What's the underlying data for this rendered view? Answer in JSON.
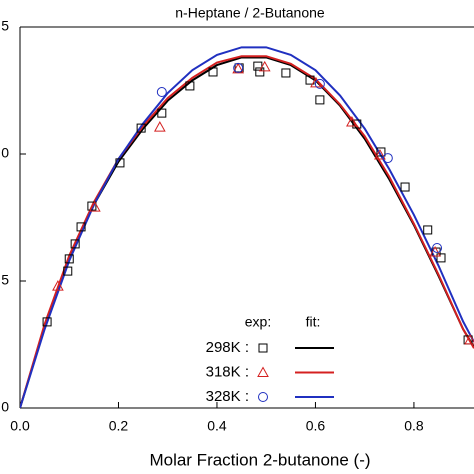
{
  "chart_data": {
    "type": "scatter",
    "title": "n-Heptane / 2-Butanone",
    "x_label": "Molar Fraction 2-butanone (-)",
    "xlim": [
      0,
      0.922
    ],
    "ylim": [
      0,
      15
    ],
    "xticks": [
      {
        "value": 0,
        "label": "0.0"
      },
      0.2,
      0.4,
      0.6,
      0.8
    ],
    "yticks": [
      {
        "value": 0,
        "label": "0"
      },
      5,
      {
        "value": 10,
        "label": "0"
      },
      {
        "value": 15,
        "label": "5"
      }
    ],
    "legend_headers": [
      "exp:",
      "fit:"
    ],
    "series": [
      {
        "name": "298K :",
        "color": "#000000",
        "marker": "square",
        "x": [
          0.055,
          0.097,
          0.1,
          0.112,
          0.124,
          0.146,
          0.203,
          0.246,
          0.288,
          0.345,
          0.392,
          0.445,
          0.483,
          0.487,
          0.54,
          0.589,
          0.609,
          0.684,
          0.733,
          0.782,
          0.828,
          0.845,
          0.855,
          0.91
        ],
        "values": [
          3.39,
          5.39,
          5.87,
          6.46,
          7.13,
          7.95,
          9.65,
          11.02,
          11.61,
          12.68,
          13.23,
          13.39,
          13.46,
          13.23,
          13.19,
          12.91,
          12.13,
          11.18,
          10.08,
          8.7,
          7.01,
          6.14,
          5.91,
          2.68
        ],
        "fit": {
          "x": [
            0,
            0.05,
            0.1,
            0.15,
            0.2,
            0.25,
            0.3,
            0.35,
            0.4,
            0.45,
            0.5,
            0.55,
            0.6,
            0.65,
            0.7,
            0.75,
            0.8,
            0.85,
            0.9,
            0.922
          ],
          "values": [
            0,
            3.2,
            5.9,
            8.0,
            9.7,
            11.0,
            12.1,
            12.9,
            13.5,
            13.8,
            13.8,
            13.5,
            12.9,
            11.9,
            10.6,
            9.0,
            7.2,
            5.2,
            3.1,
            2.4
          ]
        }
      },
      {
        "name": "318K :",
        "color": "#d42020",
        "marker": "triangle",
        "x": [
          0.077,
          0.152,
          0.284,
          0.443,
          0.497,
          0.601,
          0.674,
          0.731,
          0.843,
          0.914
        ],
        "values": [
          4.8,
          7.91,
          11.06,
          13.35,
          13.43,
          12.8,
          11.26,
          9.96,
          6.14,
          2.68
        ],
        "fit": {
          "x": [
            0,
            0.05,
            0.1,
            0.15,
            0.2,
            0.25,
            0.3,
            0.35,
            0.4,
            0.45,
            0.5,
            0.55,
            0.6,
            0.65,
            0.7,
            0.75,
            0.8,
            0.85,
            0.9,
            0.922
          ],
          "values": [
            0,
            3.3,
            6.0,
            8.1,
            9.8,
            11.1,
            12.2,
            13.0,
            13.6,
            13.85,
            13.85,
            13.55,
            12.95,
            11.95,
            10.7,
            9.1,
            7.25,
            5.25,
            3.1,
            2.35
          ]
        }
      },
      {
        "name": "328K :",
        "color": "#2030c0",
        "marker": "circle",
        "x": [
          0.288,
          0.443,
          0.609,
          0.747,
          0.847
        ],
        "values": [
          12.44,
          13.39,
          12.76,
          9.84,
          6.3
        ],
        "fit": {
          "x": [
            0,
            0.05,
            0.1,
            0.15,
            0.2,
            0.25,
            0.3,
            0.35,
            0.4,
            0.45,
            0.5,
            0.55,
            0.6,
            0.65,
            0.7,
            0.75,
            0.8,
            0.85,
            0.9,
            0.922
          ],
          "values": [
            0,
            3.1,
            5.8,
            8.0,
            9.8,
            11.2,
            12.4,
            13.3,
            13.9,
            14.2,
            14.2,
            13.9,
            13.3,
            12.3,
            11.0,
            9.4,
            7.6,
            5.6,
            3.4,
            2.6
          ]
        }
      }
    ]
  }
}
